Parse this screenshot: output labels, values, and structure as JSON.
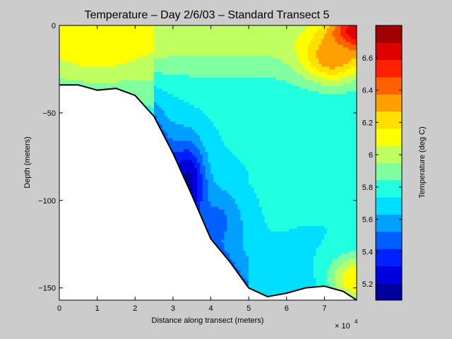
{
  "chart_data": {
    "type": "heatmap",
    "subtype": "filled-contour",
    "title": "Temperature – Day 2/6/03 – Standard Transect 5",
    "xlabel": "Distance along transect (meters)",
    "ylabel": "Depth (meters)",
    "x_exponent_label": "× 10",
    "x_exponent_power": "4",
    "xlim": [
      0,
      78500
    ],
    "ylim": [
      -157,
      0
    ],
    "x_ticks": [
      0,
      10000,
      20000,
      30000,
      40000,
      50000,
      60000,
      70000
    ],
    "x_tick_labels": [
      "0",
      "1",
      "2",
      "3",
      "4",
      "5",
      "6",
      "7"
    ],
    "y_ticks": [
      0,
      -50,
      -100,
      -150
    ],
    "y_tick_labels": [
      "0",
      "−50",
      "−100",
      "−150"
    ],
    "colorbar": {
      "label": "Temperature (deg C)",
      "range": [
        5.1,
        6.8
      ],
      "ticks": [
        5.2,
        5.4,
        5.6,
        5.8,
        6.0,
        6.2,
        6.4,
        6.6
      ],
      "tick_labels": [
        "5.2",
        "5.4",
        "5.6",
        "5.8",
        "6",
        "6.2",
        "6.4",
        "6.6"
      ],
      "colors": [
        "#00009f",
        "#0000df",
        "#0020ff",
        "#0060ff",
        "#00a0ff",
        "#00dfff",
        "#20ffdf",
        "#80ffa0",
        "#c0ff60",
        "#ffff00",
        "#ffdf00",
        "#ffa000",
        "#ff6000",
        "#ff2000",
        "#df0000",
        "#a00000"
      ]
    },
    "bathymetry": {
      "x": [
        0,
        5000,
        10000,
        15000,
        20000,
        25000,
        30000,
        35000,
        40000,
        45000,
        50000,
        55000,
        60000,
        65000,
        70000,
        75000,
        78500
      ],
      "y": [
        -34,
        -34,
        -37,
        -36,
        -40,
        -52,
        -73,
        -97,
        -122,
        -135,
        -150,
        -155,
        -153,
        -150,
        -149,
        -152,
        -157
      ]
    },
    "temperature_features": [
      {
        "x": 78000,
        "y": -5,
        "t": 6.75,
        "sx": 7000,
        "sy": 12
      },
      {
        "x": 72000,
        "y": -18,
        "t": 6.35,
        "sx": 8000,
        "sy": 14
      },
      {
        "x": 78000,
        "y": -145,
        "t": 6.15,
        "sx": 7000,
        "sy": 14
      },
      {
        "x": 34000,
        "y": -92,
        "t": 5.15,
        "sx": 4500,
        "sy": 24
      },
      {
        "x": 42000,
        "y": -112,
        "t": 5.5,
        "sx": 6000,
        "sy": 18
      },
      {
        "x": 10000,
        "y": -8,
        "t": 6.15,
        "sx": 14000,
        "sy": 20
      }
    ]
  }
}
